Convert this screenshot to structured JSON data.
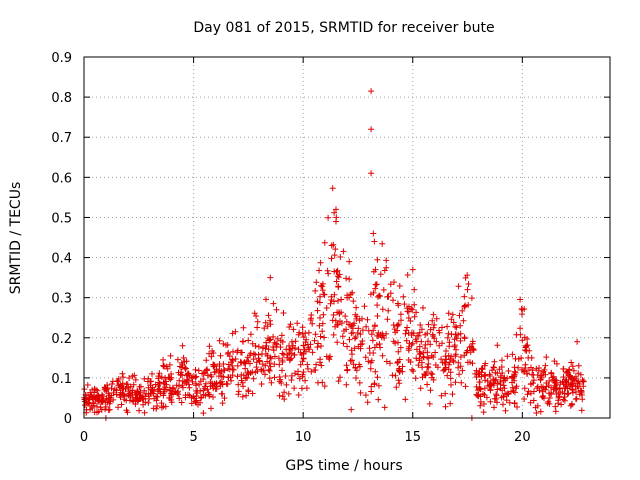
{
  "chart_data": {
    "type": "scatter",
    "title": "Day 081 of 2015, SRMTID for receiver bute",
    "xlabel": "GPS time / hours",
    "ylabel": "SRMTID / TECUs",
    "xlim": [
      0,
      24
    ],
    "ylim": [
      0,
      0.9
    ],
    "grid": true,
    "marker": "+",
    "color": "#e00000",
    "x_ticks": [
      0,
      5,
      10,
      15,
      20
    ],
    "x_tick_labels": [
      "0",
      "5",
      "10",
      "15",
      "20"
    ],
    "y_ticks": [
      0,
      0.1,
      0.2,
      0.3,
      0.4,
      0.5,
      0.6,
      0.7,
      0.8,
      0.9
    ],
    "y_tick_labels": [
      "0",
      "0.1",
      "0.2",
      "0.3",
      "0.4",
      "0.5",
      "0.6",
      "0.7",
      "0.8",
      "0.9"
    ],
    "profile": [
      [
        0,
        0.05
      ],
      [
        0.5,
        0.045
      ],
      [
        1.0,
        0.05
      ],
      [
        1.5,
        0.06
      ],
      [
        2.0,
        0.065
      ],
      [
        2.5,
        0.05
      ],
      [
        3.0,
        0.06
      ],
      [
        3.5,
        0.08
      ],
      [
        4.0,
        0.09
      ],
      [
        4.5,
        0.1
      ],
      [
        5.0,
        0.07
      ],
      [
        5.5,
        0.09
      ],
      [
        6.0,
        0.1
      ],
      [
        6.5,
        0.11
      ],
      [
        7.0,
        0.12
      ],
      [
        7.5,
        0.13
      ],
      [
        8.0,
        0.16
      ],
      [
        8.5,
        0.2
      ],
      [
        9.0,
        0.15
      ],
      [
        9.5,
        0.15
      ],
      [
        10.0,
        0.15
      ],
      [
        10.5,
        0.2
      ],
      [
        11.0,
        0.28
      ],
      [
        11.5,
        0.32
      ],
      [
        12.0,
        0.25
      ],
      [
        12.5,
        0.15
      ],
      [
        13.0,
        0.18
      ],
      [
        13.5,
        0.25
      ],
      [
        14.0,
        0.2
      ],
      [
        14.5,
        0.18
      ],
      [
        15.0,
        0.2
      ],
      [
        15.5,
        0.16
      ],
      [
        16.0,
        0.18
      ],
      [
        16.5,
        0.15
      ],
      [
        17.0,
        0.18
      ],
      [
        17.5,
        0.22
      ],
      [
        18.0,
        0.08
      ],
      [
        18.5,
        0.09
      ],
      [
        19.0,
        0.1
      ],
      [
        19.5,
        0.09
      ],
      [
        20.0,
        0.18
      ],
      [
        20.5,
        0.09
      ],
      [
        21.0,
        0.08
      ],
      [
        21.5,
        0.08
      ],
      [
        22.0,
        0.08
      ],
      [
        22.5,
        0.09
      ],
      [
        22.8,
        0.07
      ]
    ],
    "outliers": [
      {
        "x": 13.1,
        "y": 0.815
      },
      {
        "x": 13.1,
        "y": 0.72
      },
      {
        "x": 13.1,
        "y": 0.61
      },
      {
        "x": 13.2,
        "y": 0.46
      },
      {
        "x": 13.25,
        "y": 0.44
      },
      {
        "x": 11.5,
        "y": 0.52
      },
      {
        "x": 11.5,
        "y": 0.49
      },
      {
        "x": 11.3,
        "y": 0.43
      },
      {
        "x": 12.1,
        "y": 0.39
      },
      {
        "x": 13.3,
        "y": 0.37
      },
      {
        "x": 15.0,
        "y": 0.37
      },
      {
        "x": 8.5,
        "y": 0.35
      },
      {
        "x": 17.5,
        "y": 0.32
      },
      {
        "x": 20.0,
        "y": 0.27
      },
      {
        "x": 22.5,
        "y": 0.19
      },
      {
        "x": 4.5,
        "y": 0.18
      },
      {
        "x": 1.0,
        "y": 0.0
      },
      {
        "x": 17.7,
        "y": 0.0
      }
    ],
    "n_points": 1400
  }
}
